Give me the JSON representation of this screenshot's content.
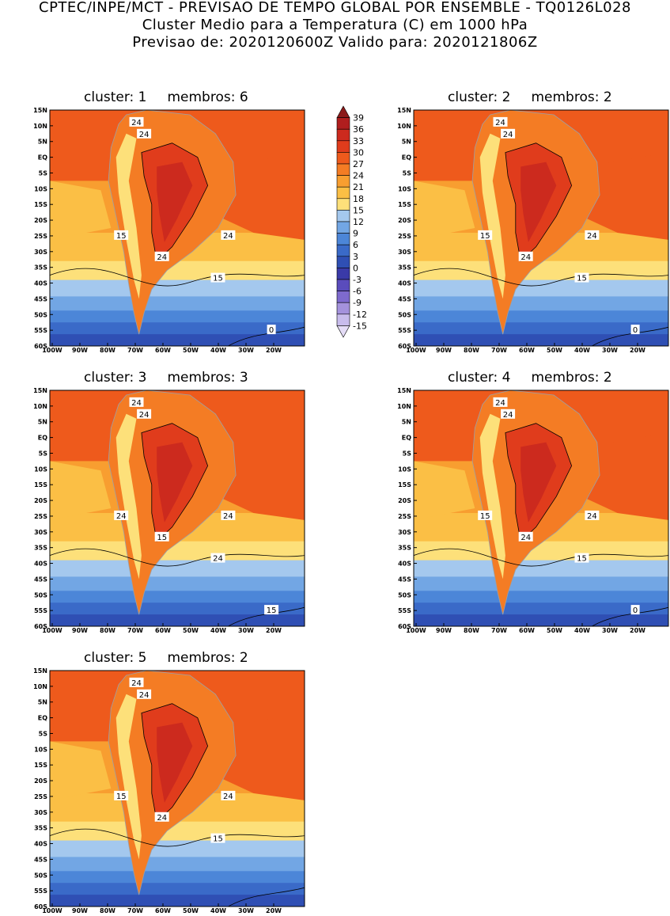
{
  "header": {
    "line1": "CPTEC/INPE/MCT - PREVISAO DE TEMPO GLOBAL POR ENSEMBLE - TQ0126L028",
    "line2": "Cluster Medio para a Temperatura (C) em 1000 hPa",
    "line3": "Previsao de: 2020120600Z   Valido para: 2020121806Z"
  },
  "panels": [
    {
      "cluster": "cluster: 1",
      "members": "membros: 6",
      "labels": [
        "24",
        "24",
        "15",
        "24",
        "24",
        "15",
        "0"
      ]
    },
    {
      "cluster": "cluster: 2",
      "members": "membros: 2",
      "labels": [
        "24",
        "24",
        "15",
        "24",
        "24",
        "15",
        "0"
      ]
    },
    {
      "cluster": "cluster: 3",
      "members": "membros: 3",
      "labels": [
        "24",
        "24",
        "24",
        "15",
        "24",
        "24",
        "15"
      ]
    },
    {
      "cluster": "cluster: 4",
      "members": "membros: 2",
      "labels": [
        "24",
        "24",
        "15",
        "24",
        "24",
        "15",
        "0"
      ]
    },
    {
      "cluster": "cluster: 5",
      "members": "membros: 2",
      "labels": [
        "24",
        "24",
        "15",
        "24",
        "24",
        "15"
      ]
    }
  ],
  "lat_ticks": [
    "15N",
    "10N",
    "5N",
    "EQ",
    "5S",
    "10S",
    "15S",
    "20S",
    "25S",
    "30S",
    "35S",
    "40S",
    "45S",
    "50S",
    "55S",
    "60S"
  ],
  "lon_ticks": [
    "100W",
    "90W",
    "80W",
    "70W",
    "60W",
    "50W",
    "40W",
    "30W",
    "20W"
  ],
  "colorbar": {
    "labels": [
      "39",
      "36",
      "33",
      "30",
      "27",
      "24",
      "21",
      "18",
      "15",
      "12",
      "9",
      "6",
      "3",
      "0",
      "-3",
      "-6",
      "-9",
      "-12",
      "-15"
    ],
    "colors": [
      "#8b1a1a",
      "#b01e1e",
      "#cc2a1e",
      "#e03c1c",
      "#ee5a1c",
      "#f47c24",
      "#f89e30",
      "#fbbf45",
      "#fde07a",
      "#a4c8ee",
      "#72a6e4",
      "#4c86d8",
      "#3a6ac8",
      "#2f4fb4",
      "#3a3aa8",
      "#5a4cbc",
      "#7e6ace",
      "#a492dc",
      "#c8bcec",
      "#e4dcf6"
    ]
  }
}
